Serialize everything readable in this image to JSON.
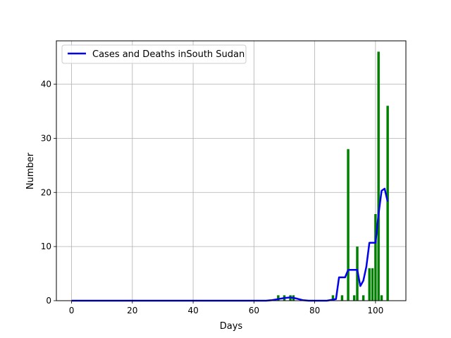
{
  "chart_data": {
    "type": "bar",
    "title": "",
    "xlabel": "Days",
    "ylabel": "Number",
    "xlim": [
      -5,
      110
    ],
    "ylim": [
      0,
      48
    ],
    "xticks": [
      0,
      20,
      40,
      60,
      80,
      100
    ],
    "yticks": [
      0,
      10,
      20,
      30,
      40
    ],
    "grid": true,
    "legend": {
      "placement": "top-left",
      "entries": [
        "Cases and Deaths inSouth Sudan"
      ]
    },
    "series": [
      {
        "name": "Cases and Deaths inSouth Sudan",
        "type": "line",
        "color": "#0000ee",
        "x": [
          0,
          64,
          66,
          68,
          70,
          72,
          74,
          76,
          78,
          84,
          86,
          87,
          88,
          89,
          90,
          91,
          92,
          93,
          94,
          95,
          96,
          97,
          98,
          99,
          100,
          101,
          102,
          103,
          104
        ],
        "y": [
          0,
          0,
          0.1,
          0.3,
          0.5,
          0.6,
          0.4,
          0.1,
          0,
          0,
          0.2,
          0.3,
          4.3,
          4.3,
          4.3,
          5.7,
          5.7,
          5.7,
          5.7,
          2.7,
          3.7,
          6.3,
          10.7,
          10.7,
          10.7,
          16,
          20.3,
          20.7,
          18.3
        ]
      },
      {
        "name": "",
        "type": "bar",
        "color": "#008000",
        "x": [
          68,
          70,
          72,
          73,
          86,
          89,
          91,
          93,
          94,
          96,
          98,
          99,
          100,
          101,
          102,
          104
        ],
        "values": [
          1,
          1,
          1,
          1,
          1,
          1,
          28,
          1,
          10,
          1,
          6,
          6,
          16,
          46,
          1,
          36
        ]
      }
    ]
  }
}
